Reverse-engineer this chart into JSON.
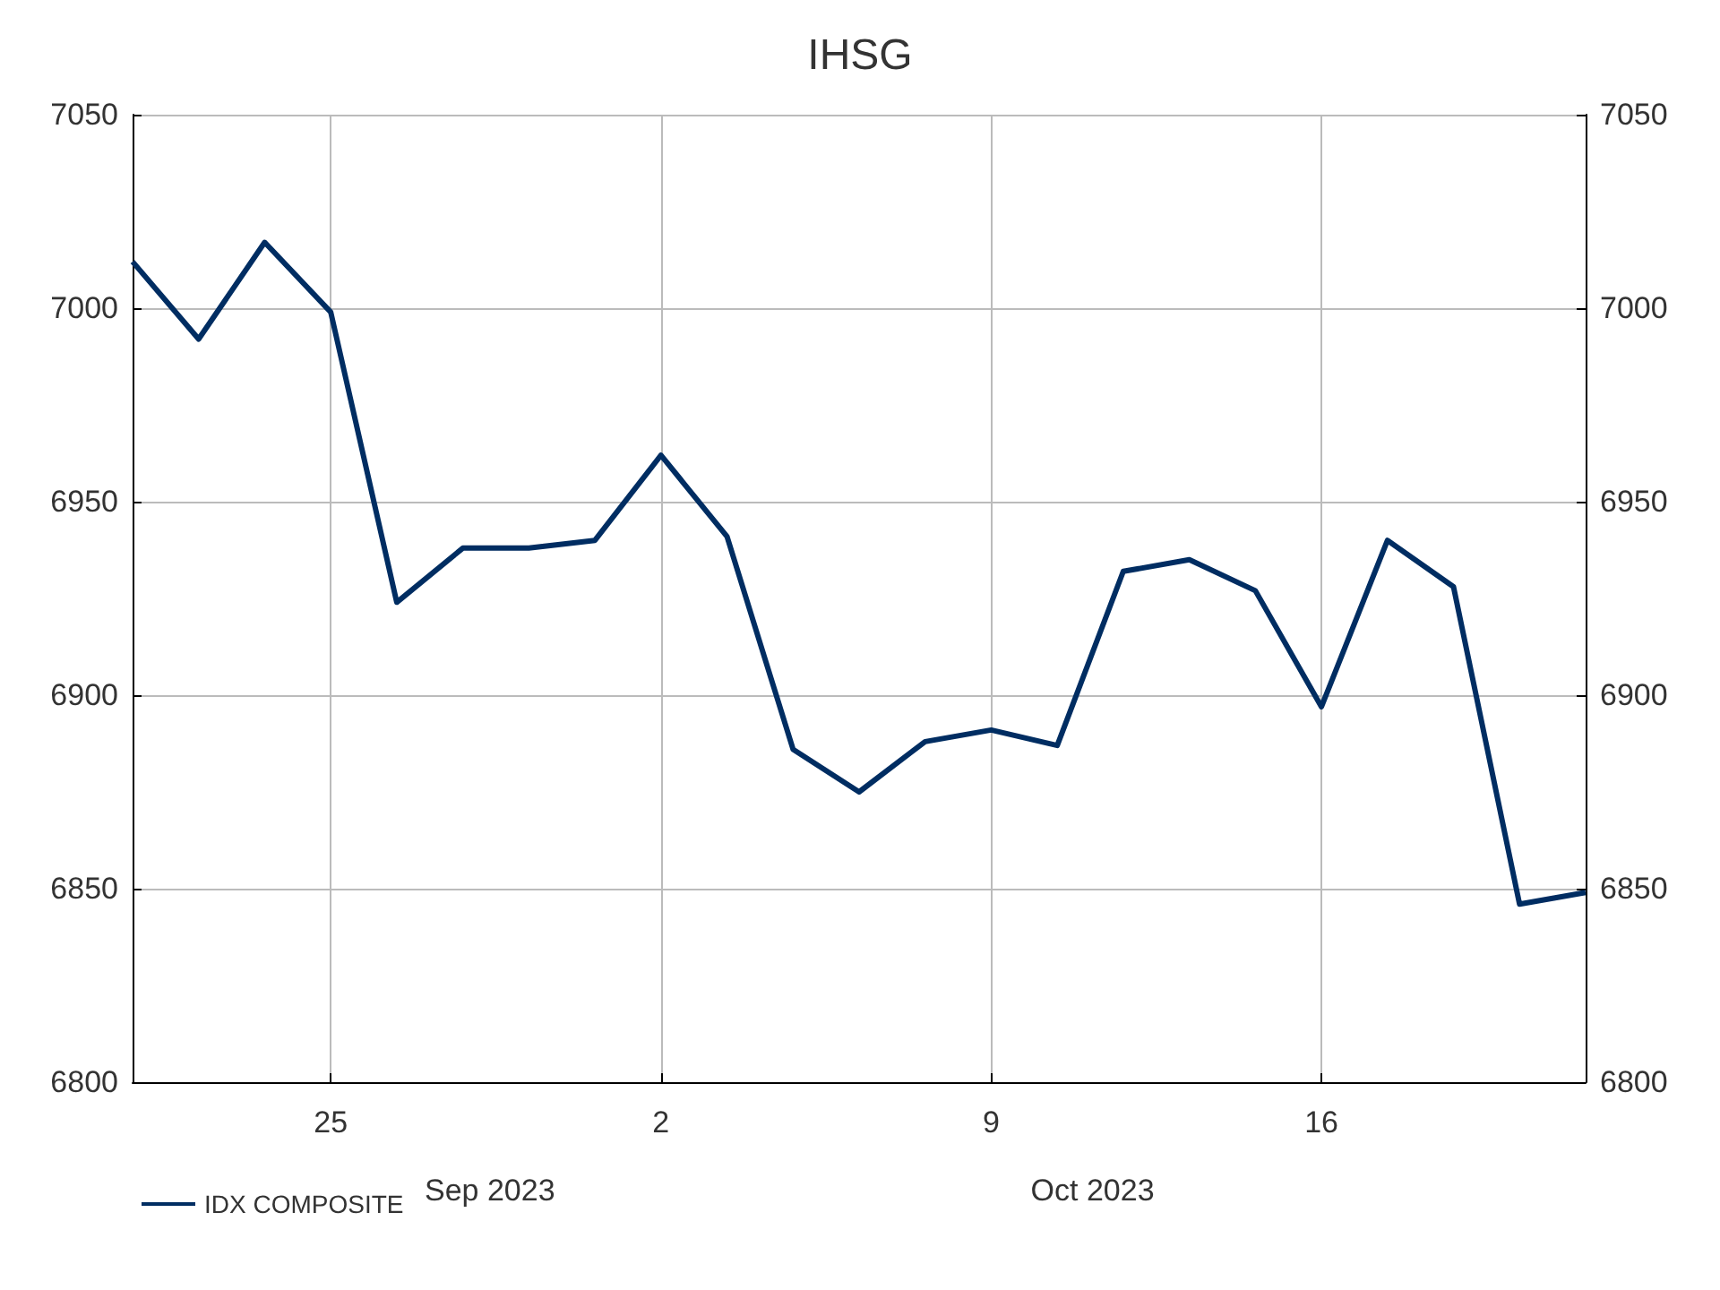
{
  "chart_data": {
    "type": "line",
    "title": "IHSG",
    "categories": [
      null,
      null,
      null,
      "25",
      null,
      null,
      null,
      null,
      "2",
      null,
      null,
      null,
      null,
      "9",
      null,
      null,
      null,
      null,
      "16",
      null,
      null,
      null,
      null
    ],
    "series": [
      {
        "name": "IDX COMPOSITE",
        "color": "#002d62",
        "values": [
          7012,
          6992,
          7017,
          6999,
          6924,
          6938,
          6938,
          6940,
          6962,
          6941,
          6886,
          6875,
          6888,
          6891,
          6887,
          6932,
          6935,
          6927,
          6897,
          6940,
          6928,
          6846,
          6849
        ]
      }
    ],
    "ylim": [
      6800,
      7050
    ],
    "yticks": [
      6800,
      6850,
      6900,
      6950,
      7000,
      7050
    ],
    "y2lim": [
      6800,
      7050
    ],
    "y2ticks": [
      6800,
      6850,
      6900,
      6950,
      7000,
      7050
    ],
    "annotations": [
      "Sep 2023",
      "Oct 2023"
    ],
    "grid": true,
    "legend": "bottom left",
    "marker": "none",
    "line_style": "solid"
  }
}
